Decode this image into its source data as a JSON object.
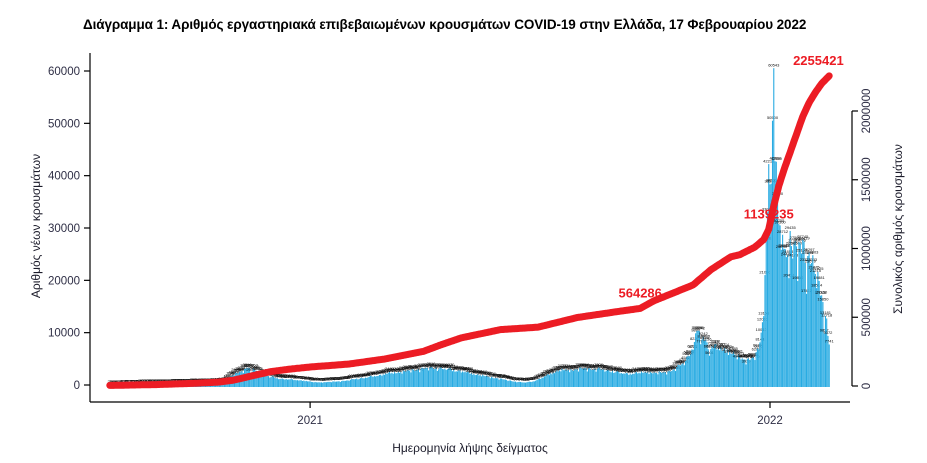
{
  "title": "Διάγραμμα 1: Αριθμός εργαστηριακά επιβεβαιωμένων κρουσμάτων COVID-19 στην Ελλάδα, 17 Φεβρουαρίου 2022",
  "chart_data": {
    "type": "bar",
    "title": "Διάγραμμα 1: Αριθμός εργαστηριακά επιβεβαιωμένων κρουσμάτων COVID-19 στην Ελλάδα, 17 Φεβρουαρίου 2022",
    "xlabel": "Ημερομηνία λήψης δείγματος",
    "ylabel_left": "Αριθμός νέων κρουσμάτων",
    "ylabel_right": "Συνολικός αριθμός κρουσμάτων",
    "x_range": [
      "2020-07-26",
      "2022-02-17"
    ],
    "x_tick_labels": [
      "2021",
      "2022"
    ],
    "x_tick_dates": [
      "2021-01-01",
      "2022-01-01"
    ],
    "y_left_ticks": [
      0,
      10000,
      20000,
      30000,
      40000,
      50000,
      60000
    ],
    "y_right_ticks": [
      0,
      500000,
      1000000,
      1500000,
      2000000
    ],
    "ylim_left": [
      0,
      60000
    ],
    "ylim_right": [
      0,
      2300000
    ],
    "grid": false,
    "legend": false,
    "bar_labels_shown": true,
    "colors": {
      "bars": "#29abe2",
      "cumulative_line": "#ec1c24",
      "annotations": "#ec1c24",
      "axis": "#000000",
      "tick_labels": "#2e2e45",
      "bar_labels": "#0a0a0a",
      "title": "#000000"
    },
    "annotations": [
      {
        "label": "564286",
        "date": "2021-09-20",
        "value": 564286
      },
      {
        "label": "1139235",
        "date": "2021-12-31",
        "value": 1139235
      },
      {
        "label": "2255421",
        "date": "2022-02-17",
        "value": 2255421
      }
    ],
    "series": [
      {
        "name": "daily_new_cases",
        "type": "bar",
        "resolution": "daily, interpolated between control points",
        "points": [
          [
            "2020-07-26",
            25
          ],
          [
            "2020-08-09",
            120
          ],
          [
            "2020-08-23",
            200
          ],
          [
            "2020-09-06",
            250
          ],
          [
            "2020-09-20",
            310
          ],
          [
            "2020-10-04",
            380
          ],
          [
            "2020-10-18",
            450
          ],
          [
            "2020-10-25",
            620
          ],
          [
            "2020-11-01",
            1900
          ],
          [
            "2020-11-08",
            2700
          ],
          [
            "2020-11-12",
            3316
          ],
          [
            "2020-11-18",
            2900
          ],
          [
            "2020-11-24",
            2200
          ],
          [
            "2020-11-29",
            1700
          ],
          [
            "2020-12-06",
            1300
          ],
          [
            "2020-12-13",
            1150
          ],
          [
            "2020-12-20",
            980
          ],
          [
            "2020-12-27",
            850
          ],
          [
            "2021-01-03",
            560
          ],
          [
            "2021-01-10",
            510
          ],
          [
            "2021-01-17",
            590
          ],
          [
            "2021-01-24",
            720
          ],
          [
            "2021-01-31",
            880
          ],
          [
            "2021-02-07",
            1250
          ],
          [
            "2021-02-14",
            1420
          ],
          [
            "2021-02-21",
            1750
          ],
          [
            "2021-02-28",
            2050
          ],
          [
            "2021-03-07",
            2350
          ],
          [
            "2021-03-14",
            2500
          ],
          [
            "2021-03-21",
            2760
          ],
          [
            "2021-03-28",
            3060
          ],
          [
            "2021-04-04",
            3250
          ],
          [
            "2021-04-11",
            3320
          ],
          [
            "2021-04-18",
            3150
          ],
          [
            "2021-04-25",
            2950
          ],
          [
            "2021-05-02",
            2600
          ],
          [
            "2021-05-09",
            2250
          ],
          [
            "2021-05-16",
            1900
          ],
          [
            "2021-05-23",
            1550
          ],
          [
            "2021-05-30",
            1300
          ],
          [
            "2021-06-06",
            950
          ],
          [
            "2021-06-13",
            650
          ],
          [
            "2021-06-20",
            480
          ],
          [
            "2021-06-27",
            700
          ],
          [
            "2021-07-04",
            1350
          ],
          [
            "2021-07-11",
            2250
          ],
          [
            "2021-07-18",
            2800
          ],
          [
            "2021-07-25",
            2900
          ],
          [
            "2021-08-01",
            3000
          ],
          [
            "2021-08-08",
            3200
          ],
          [
            "2021-08-15",
            3100
          ],
          [
            "2021-08-22",
            3000
          ],
          [
            "2021-08-29",
            2700
          ],
          [
            "2021-09-05",
            2300
          ],
          [
            "2021-09-12",
            2200
          ],
          [
            "2021-09-19",
            2350
          ],
          [
            "2021-09-26",
            2500
          ],
          [
            "2021-10-03",
            2300
          ],
          [
            "2021-10-10",
            2450
          ],
          [
            "2021-10-17",
            3000
          ],
          [
            "2021-10-24",
            4200
          ],
          [
            "2021-10-31",
            6800
          ],
          [
            "2021-11-04",
            10326
          ],
          [
            "2021-11-06",
            10242
          ],
          [
            "2021-11-09",
            9242
          ],
          [
            "2021-11-12",
            8156
          ],
          [
            "2021-11-16",
            7365
          ],
          [
            "2021-11-21",
            7100
          ],
          [
            "2021-11-28",
            6800
          ],
          [
            "2021-12-05",
            5600
          ],
          [
            "2021-12-12",
            4900
          ],
          [
            "2021-12-19",
            5200
          ],
          [
            "2021-12-23",
            6800
          ],
          [
            "2021-12-26",
            12000
          ],
          [
            "2021-12-28",
            21000
          ],
          [
            "2021-12-30",
            33000
          ],
          [
            "2021-12-31",
            42212
          ],
          [
            "2022-01-02",
            38500
          ],
          [
            "2022-01-03",
            50500
          ],
          [
            "2022-01-04",
            60543
          ],
          [
            "2022-01-05",
            42768
          ],
          [
            "2022-01-07",
            36000
          ],
          [
            "2022-01-09",
            30500
          ],
          [
            "2022-01-11",
            28712
          ],
          [
            "2022-01-13",
            26000
          ],
          [
            "2022-01-15",
            24858
          ],
          [
            "2022-01-17",
            29435
          ],
          [
            "2022-01-19",
            24173
          ],
          [
            "2022-01-22",
            26500
          ],
          [
            "2022-01-24",
            27305
          ],
          [
            "2022-01-27",
            27745
          ],
          [
            "2022-01-31",
            24655
          ],
          [
            "2022-02-03",
            23333
          ],
          [
            "2022-02-06",
            21215
          ],
          [
            "2022-02-09",
            19881
          ],
          [
            "2022-02-12",
            15850
          ],
          [
            "2022-02-14",
            13181
          ],
          [
            "2022-02-15",
            12718
          ],
          [
            "2022-02-16",
            9372
          ],
          [
            "2022-02-17",
            7741
          ]
        ]
      },
      {
        "name": "cumulative_cases",
        "type": "line",
        "resolution": "daily, interpolated between control points",
        "points": [
          [
            "2020-07-26",
            4200
          ],
          [
            "2020-09-01",
            10500
          ],
          [
            "2020-10-01",
            19500
          ],
          [
            "2020-10-20",
            28000
          ],
          [
            "2020-11-01",
            42000
          ],
          [
            "2020-11-15",
            72000
          ],
          [
            "2020-12-01",
            105000
          ],
          [
            "2020-12-15",
            122000
          ],
          [
            "2021-01-01",
            138000
          ],
          [
            "2021-02-01",
            160000
          ],
          [
            "2021-03-01",
            196000
          ],
          [
            "2021-04-01",
            252000
          ],
          [
            "2021-04-15",
            300000
          ],
          [
            "2021-05-01",
            350000
          ],
          [
            "2021-06-01",
            410000
          ],
          [
            "2021-07-01",
            428000
          ],
          [
            "2021-08-01",
            498000
          ],
          [
            "2021-09-01",
            540000
          ],
          [
            "2021-09-20",
            564286
          ],
          [
            "2021-10-01",
            620000
          ],
          [
            "2021-11-01",
            735000
          ],
          [
            "2021-11-15",
            845000
          ],
          [
            "2021-12-01",
            940000
          ],
          [
            "2021-12-08",
            955000
          ],
          [
            "2021-12-20",
            1010000
          ],
          [
            "2021-12-27",
            1065000
          ],
          [
            "2021-12-31",
            1139235
          ],
          [
            "2022-01-04",
            1310000
          ],
          [
            "2022-01-08",
            1455000
          ],
          [
            "2022-01-12",
            1570000
          ],
          [
            "2022-01-17",
            1700000
          ],
          [
            "2022-01-22",
            1830000
          ],
          [
            "2022-01-27",
            1960000
          ],
          [
            "2022-02-01",
            2060000
          ],
          [
            "2022-02-06",
            2135000
          ],
          [
            "2022-02-11",
            2200000
          ],
          [
            "2022-02-17",
            2255421
          ]
        ]
      }
    ]
  }
}
